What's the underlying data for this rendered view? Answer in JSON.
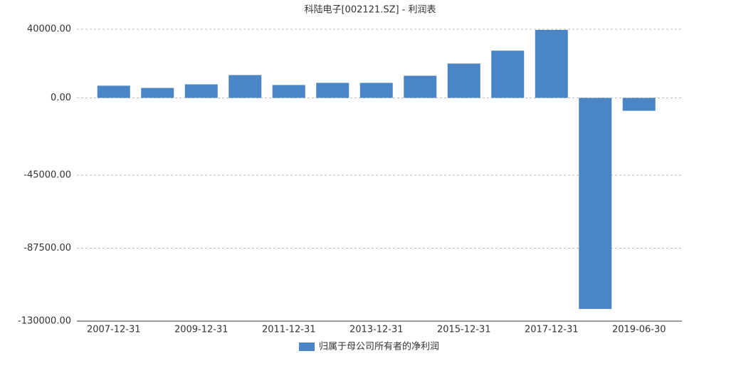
{
  "chart_data": {
    "type": "bar",
    "title": "科陆电子[002121.SZ] - 利润表",
    "categories": [
      "2007-12-31",
      null,
      "2009-12-31",
      null,
      "2011-12-31",
      null,
      "2013-12-31",
      null,
      "2015-12-31",
      null,
      "2017-12-31",
      null,
      "2019-06-30"
    ],
    "series": [
      {
        "name": "归属于母公司所有者的净利润",
        "color": "#4a86c5",
        "values": [
          7100,
          5800,
          7900,
          13300,
          7500,
          8750,
          8750,
          12900,
          20000,
          27500,
          39600,
          -122900,
          -7500
        ]
      }
    ],
    "ylim": [
      -130000,
      40000
    ],
    "yticks": [
      {
        "value": 40000,
        "label": "40000.00"
      },
      {
        "value": 0,
        "label": "0.00"
      },
      {
        "value": -45000,
        "label": "-45000.00"
      },
      {
        "value": -87500,
        "label": "-87500.00"
      },
      {
        "value": -130000,
        "label": "-130000.00"
      }
    ],
    "grid": true,
    "legend": "bottom"
  }
}
